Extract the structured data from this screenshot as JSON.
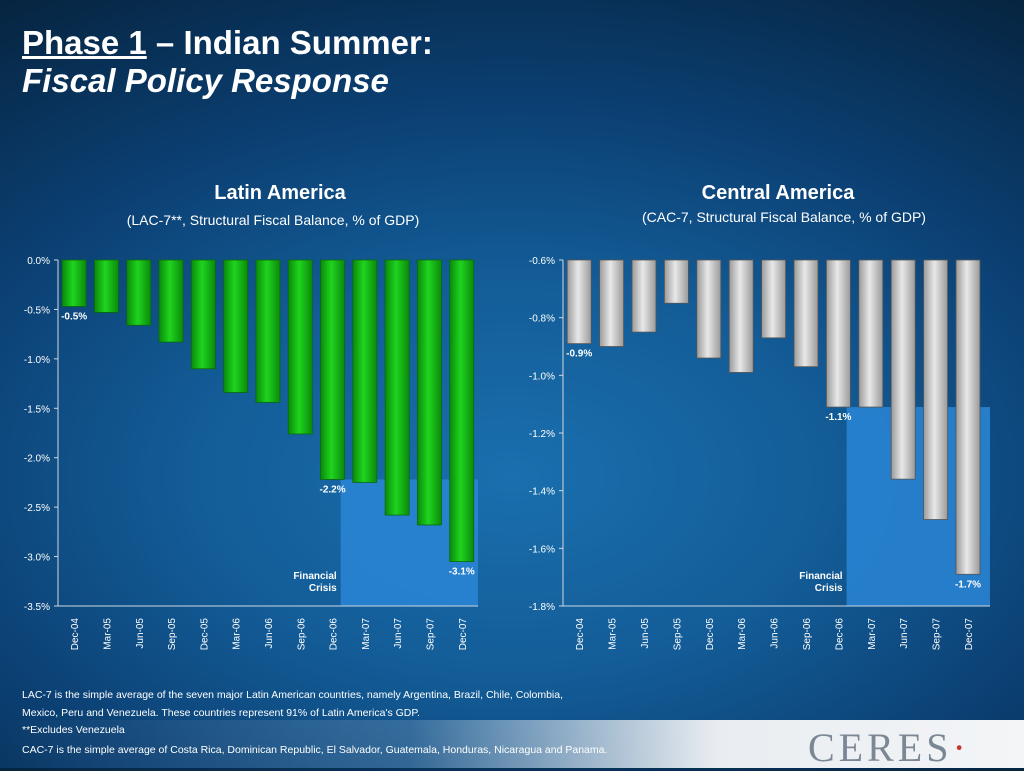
{
  "slide": {
    "title_part1": "Phase 1",
    "title_part2": " – Indian Summer:",
    "title_line2": "Fiscal Policy Response"
  },
  "notes": {
    "line1": "LAC-7 is the simple average of the seven major Latin American countries, namely Argentina, Brazil, Chile, Colombia,",
    "line2": "Mexico, Peru and Venezuela. These countries represent 91% of Latin America's GDP.",
    "line3": "**Excludes Venezuela",
    "line4": "CAC-7 is the simple average of Costa Rica, Dominican Republic, El Salvador, Guatemala, Honduras, Nicaragua and Panama."
  },
  "logo": {
    "text": "CERES"
  },
  "chart_data": [
    {
      "type": "bar",
      "title": "Latin America",
      "subtitle": "(LAC-7**, Structural Fiscal Balance, % of GDP)",
      "categories": [
        "Dec-04",
        "Mar-05",
        "Jun-05",
        "Sep-05",
        "Dec-05",
        "Mar-06",
        "Jun-06",
        "Sep-06",
        "Dec-06",
        "Mar-07",
        "Jun-07",
        "Sep-07",
        "Dec-07"
      ],
      "values": [
        -0.47,
        -0.53,
        -0.66,
        -0.83,
        -1.1,
        -1.34,
        -1.44,
        -1.76,
        -2.22,
        -2.25,
        -2.58,
        -2.68,
        -3.05
      ],
      "ylim": [
        -3.5,
        0.0
      ],
      "yticks": [
        "0.0%",
        "-0.5%",
        "-1.0%",
        "-1.5%",
        "-2.0%",
        "-2.5%",
        "-3.0%",
        "-3.5%"
      ],
      "ytick_values": [
        0.0,
        -0.5,
        -1.0,
        -1.5,
        -2.0,
        -2.5,
        -3.0,
        -3.5
      ],
      "data_labels": [
        {
          "index": 0,
          "text": "-0.5%"
        },
        {
          "index": 8,
          "text": "-2.2%"
        },
        {
          "index": 12,
          "text": "-3.1%"
        }
      ],
      "bar_color": "#1fd41f",
      "highlight": {
        "from_index": 9,
        "label_line1": "Financial",
        "label_line2": "Crisis",
        "color": "#2a86d6"
      }
    },
    {
      "type": "bar",
      "title": "Central America",
      "subtitle": "(CAC-7, Structural Fiscal Balance, % of GDP)",
      "categories": [
        "Dec-04",
        "Mar-05",
        "Jun-05",
        "Sep-05",
        "Dec-05",
        "Mar-06",
        "Jun-06",
        "Sep-06",
        "Dec-06",
        "Mar-07",
        "Jun-07",
        "Sep-07",
        "Dec-07"
      ],
      "values": [
        -0.89,
        -0.9,
        -0.85,
        -0.75,
        -0.94,
        -0.99,
        -0.87,
        -0.97,
        -1.11,
        -1.11,
        -1.36,
        -1.5,
        -1.69
      ],
      "ylim": [
        -1.8,
        -0.6
      ],
      "yticks": [
        "-0.6%",
        "-0.8%",
        "-1.0%",
        "-1.2%",
        "-1.4%",
        "-1.6%",
        "-1.8%"
      ],
      "ytick_values": [
        -0.6,
        -0.8,
        -1.0,
        -1.2,
        -1.4,
        -1.6,
        -1.8
      ],
      "data_labels": [
        {
          "index": 0,
          "text": "-0.9%"
        },
        {
          "index": 8,
          "text": "-1.1%"
        },
        {
          "index": 12,
          "text": "-1.7%"
        }
      ],
      "bar_color": "#e8e8e8",
      "highlight": {
        "from_index": 9,
        "label_line1": "Financial",
        "label_line2": "Crisis",
        "color": "#2a86d6"
      }
    }
  ]
}
